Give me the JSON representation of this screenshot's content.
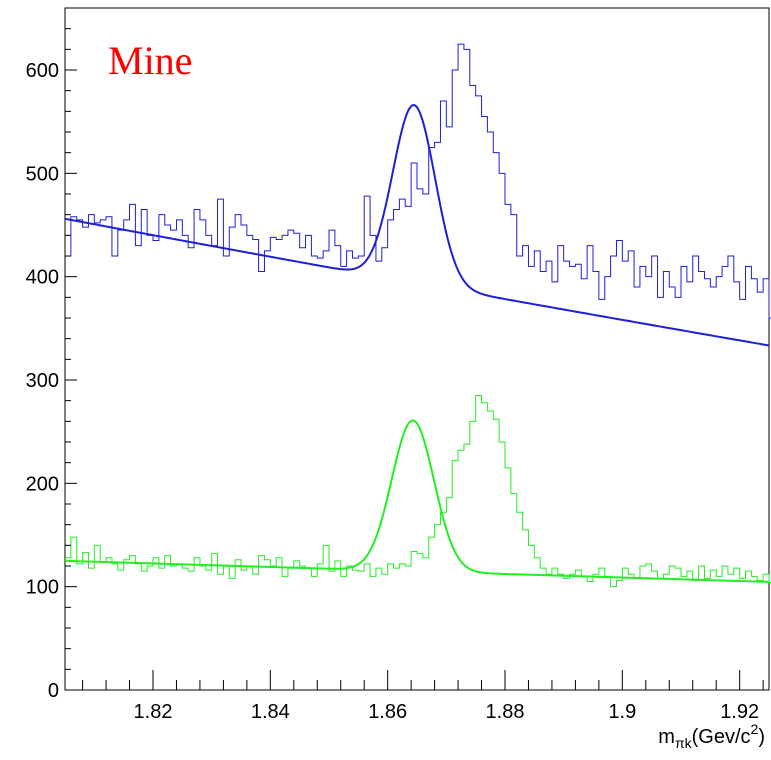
{
  "chart_data": {
    "type": "line",
    "title": "",
    "annotation": "Mine",
    "xlabel": {
      "main": "m",
      "subscript": "πk",
      "unit_prefix": "(Gev/c",
      "superscript": "2",
      "unit_suffix": ")"
    },
    "ylabel": "",
    "xlim": [
      1.805,
      1.925
    ],
    "ylim": [
      0,
      660
    ],
    "xticks": [
      1.82,
      1.84,
      1.86,
      1.88,
      1.9,
      1.92
    ],
    "xtick_labels": [
      "1.82",
      "1.84",
      "1.86",
      "1.88",
      "1.9",
      "1.92"
    ],
    "yticks": [
      0,
      100,
      200,
      300,
      400,
      500,
      600
    ],
    "ytick_labels": [
      "0",
      "100",
      "200",
      "300",
      "400",
      "500",
      "600"
    ],
    "bin_edges_start": 1.805,
    "bin_width": 0.001,
    "series": [
      {
        "kind": "histogram",
        "color": "#1f1fd6",
        "values": [
          420,
          458,
          455,
          448,
          460,
          452,
          455,
          458,
          420,
          445,
          455,
          470,
          430,
          465,
          440,
          435,
          460,
          450,
          445,
          455,
          440,
          428,
          465,
          455,
          440,
          430,
          475,
          420,
          448,
          460,
          450,
          440,
          436,
          405,
          425,
          438,
          436,
          440,
          445,
          442,
          428,
          440,
          420,
          418,
          425,
          445,
          430,
          410,
          425,
          418,
          420,
          478,
          440,
          415,
          428,
          455,
          465,
          475,
          468,
          510,
          485,
          480,
          525,
          530,
          570,
          545,
          600,
          625,
          620,
          585,
          575,
          555,
          540,
          520,
          500,
          470,
          460,
          420,
          430,
          410,
          425,
          405,
          415,
          395,
          430,
          415,
          410,
          412,
          398,
          430,
          405,
          378,
          400,
          420,
          435,
          415,
          425,
          390,
          410,
          400,
          420,
          380,
          405,
          390,
          380,
          410,
          395,
          420,
          405,
          398,
          390,
          400,
          410,
          420,
          395,
          378,
          410,
          398,
          385,
          398,
          360,
          380,
          370,
          385,
          392,
          378,
          375,
          430,
          370,
          370,
          415,
          358,
          390,
          385,
          380,
          358
        ]
      },
      {
        "kind": "fit",
        "color": "#1f1fd6",
        "background": {
          "a": 456,
          "b": 1.06,
          "c": 0.00032
        },
        "peak": {
          "amplitude": 172,
          "mean": 1.8645,
          "sigma": 0.0036
        }
      },
      {
        "kind": "histogram",
        "color": "#22ee22",
        "values": [
          128,
          148,
          122,
          133,
          118,
          140,
          124,
          128,
          122,
          116,
          126,
          130,
          122,
          115,
          120,
          128,
          118,
          130,
          120,
          122,
          118,
          115,
          128,
          120,
          116,
          132,
          112,
          120,
          108,
          126,
          116,
          120,
          112,
          130,
          126,
          120,
          128,
          110,
          118,
          125,
          120,
          118,
          110,
          122,
          140,
          115,
          125,
          110,
          120,
          116,
          115,
          122,
          110,
          118,
          112,
          122,
          118,
          122,
          120,
          134,
          132,
          128,
          148,
          160,
          172,
          186,
          222,
          232,
          238,
          260,
          285,
          278,
          270,
          262,
          240,
          215,
          190,
          172,
          155,
          140,
          128,
          118,
          112,
          118,
          112,
          108,
          112,
          116,
          110,
          105,
          112,
          118,
          110,
          100,
          106,
          118,
          112,
          108,
          120,
          122,
          115,
          108,
          112,
          120,
          118,
          110,
          115,
          106,
          120,
          108,
          116,
          110,
          120,
          112,
          118,
          108,
          115,
          110,
          106,
          112,
          104,
          110,
          106,
          112,
          115,
          108,
          106,
          110,
          112,
          108,
          100,
          105,
          96,
          108,
          104,
          80
        ]
      },
      {
        "kind": "fit",
        "color": "#22ee22",
        "background": {
          "a": 125,
          "b": 0.17,
          "c": 0
        },
        "peak": {
          "amplitude": 146,
          "mean": 1.8643,
          "sigma": 0.0036
        }
      }
    ]
  }
}
